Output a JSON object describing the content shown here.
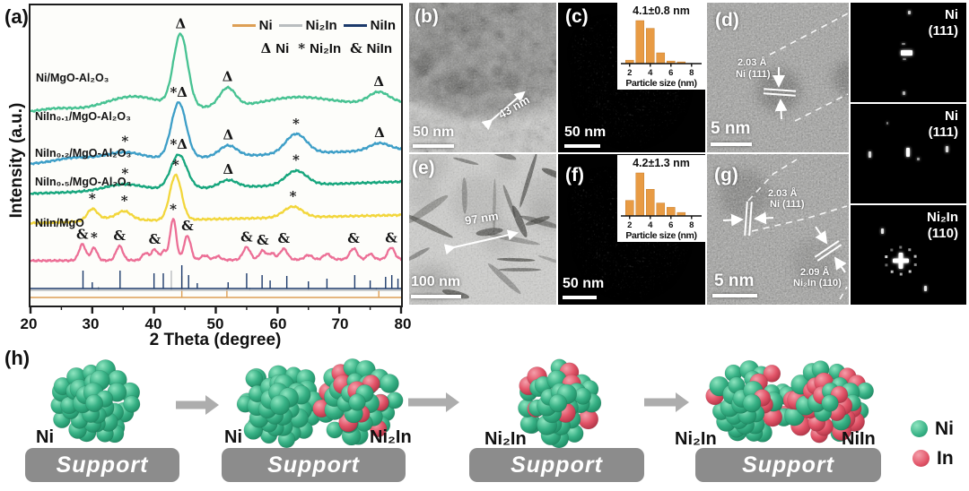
{
  "panels": {
    "a_label": "(a)",
    "h_label": "(h)"
  },
  "chart_data": [
    {
      "id": "xrd",
      "type": "line",
      "title": "",
      "xlabel": "2 Theta (degree)",
      "ylabel": "Intensity (a.u.)",
      "xlim": [
        20,
        80
      ],
      "x_ticks": [
        20,
        30,
        40,
        50,
        60,
        70,
        80
      ],
      "grid": false,
      "legend_position": "top-right",
      "series": [
        {
          "name": "Ni/MgO-Al₂O₃",
          "color": "#47c292",
          "base": 120,
          "slope": -0.2,
          "humps": [
            [
              36.5,
              15,
              4.5
            ],
            [
              63,
              9,
              5
            ],
            [
              24,
              4,
              3
            ]
          ],
          "peaks": [
            [
              44.3,
              80,
              1.15
            ],
            [
              51.9,
              21,
              1.3
            ],
            [
              76.4,
              12,
              1.6
            ]
          ],
          "markers": [
            [
              "Δ",
              44.3
            ],
            [
              "Δ",
              51.9
            ],
            [
              "Δ",
              76.4
            ]
          ]
        },
        {
          "name": "NiIn₀.₁/MgO-Al₂O₃",
          "color": "#3d9ec7",
          "base": 177,
          "slope": -0.27,
          "humps": [
            [
              35,
              9,
              3
            ],
            [
              27,
              5,
              3
            ]
          ],
          "peaks": [
            [
              44.0,
              62,
              1.2
            ],
            [
              52,
              12,
              1.4
            ],
            [
              63,
              22,
              1.7
            ],
            [
              76.5,
              8,
              1.6
            ]
          ],
          "markers": [
            [
              "*",
              35.3
            ],
            [
              "*Δ",
              44.0
            ],
            [
              "Δ",
              52.0
            ],
            [
              "*",
              63.0
            ],
            [
              "Δ",
              76.5
            ]
          ]
        },
        {
          "name": "NiIn₀.₂/MgO-Al₂O₃",
          "color": "#17a67d",
          "base": 210,
          "slope": -0.22,
          "humps": [
            [
              35,
              7,
              3
            ]
          ],
          "peaks": [
            [
              44.0,
              38,
              1.3
            ],
            [
              52,
              8,
              1.4
            ],
            [
              63,
              16,
              1.7
            ]
          ],
          "markers": [
            [
              "*",
              35.3
            ],
            [
              "*Δ",
              44.0
            ],
            [
              "Δ",
              52.0
            ],
            [
              "*",
              63.0
            ]
          ]
        },
        {
          "name": "NiIn₀.₅/MgO-Al₂O₃",
          "color": "#f2d63b",
          "base": 243,
          "slope": -0.15,
          "humps": [
            [
              33,
              4,
              3
            ]
          ],
          "peaks": [
            [
              30,
              12,
              0.8
            ],
            [
              35.2,
              8,
              1.1
            ],
            [
              43.5,
              50,
              0.95
            ],
            [
              62.5,
              12,
              1.5
            ]
          ],
          "markers": [
            [
              "*",
              30.0
            ],
            [
              "*",
              35.2
            ],
            [
              "*",
              43.5
            ],
            [
              "*",
              62.5
            ]
          ]
        },
        {
          "name": "NiIn/MgO",
          "color": "#ec6f96",
          "base": 285,
          "slope": -0.03,
          "humps": [],
          "peaks": [
            [
              28.4,
              18,
              0.55
            ],
            [
              30.3,
              14,
              0.5
            ],
            [
              34.4,
              16,
              0.55
            ],
            [
              38.6,
              8,
              0.5
            ],
            [
              40.1,
              12,
              0.5
            ],
            [
              41.6,
              10,
              0.45
            ],
            [
              43.1,
              46,
              0.5
            ],
            [
              45.4,
              27,
              0.55
            ],
            [
              48.2,
              5,
              0.6
            ],
            [
              50.3,
              4,
              0.5
            ],
            [
              55.0,
              14,
              0.6
            ],
            [
              57.6,
              10,
              0.55
            ],
            [
              59.1,
              7,
              0.5
            ],
            [
              61.0,
              12,
              0.6
            ],
            [
              65.0,
              5,
              0.6
            ],
            [
              68.0,
              6,
              0.6
            ],
            [
              72.3,
              12,
              0.6
            ],
            [
              75.0,
              6,
              0.5
            ],
            [
              78.4,
              13,
              0.55
            ]
          ],
          "markers": [
            [
              "&",
              28.4
            ],
            [
              "*",
              30.3
            ],
            [
              "&",
              34.4
            ],
            [
              "&",
              40.1
            ],
            [
              "*",
              43.1
            ],
            [
              "&",
              45.4
            ],
            [
              "&",
              55.0
            ],
            [
              "&",
              57.6
            ],
            [
              "&",
              61.0
            ],
            [
              "&",
              72.3
            ],
            [
              "&",
              78.4
            ]
          ]
        }
      ],
      "ref_series": [
        {
          "name": "Ni",
          "color": "#dd9f55",
          "base": 326,
          "sticks": [
            [
              44.5,
              24
            ],
            [
              51.8,
              11
            ],
            [
              76.4,
              8
            ]
          ]
        },
        {
          "name": "Ni₂In",
          "color": "#b9bdbf",
          "base": 318,
          "sticks": [
            [
              31,
              4
            ],
            [
              42.8,
              22
            ],
            [
              55.5,
              3
            ],
            [
              65,
              3
            ],
            [
              76,
              3
            ]
          ]
        },
        {
          "name": "NiIn",
          "color": "#1c3a6b",
          "base": 316,
          "sticks": [
            [
              28.5,
              20
            ],
            [
              30,
              7
            ],
            [
              34.5,
              20
            ],
            [
              40,
              17
            ],
            [
              41.5,
              17
            ],
            [
              44.5,
              26
            ],
            [
              45.6,
              15
            ],
            [
              47,
              6
            ],
            [
              52,
              7
            ],
            [
              55,
              17
            ],
            [
              57.5,
              15
            ],
            [
              58.8,
              9
            ],
            [
              61.5,
              14
            ],
            [
              65,
              8
            ],
            [
              68,
              11
            ],
            [
              72.5,
              15
            ],
            [
              75,
              9
            ],
            [
              77.5,
              13
            ],
            [
              78.5,
              15
            ],
            [
              79.5,
              11
            ]
          ]
        }
      ],
      "symbol_legend": [
        {
          "symbol": "Δ",
          "label": "Ni"
        },
        {
          "symbol": "*",
          "label": "Ni₂In"
        },
        {
          "symbol": "&",
          "label": "NiIn"
        }
      ]
    },
    {
      "id": "hist_c",
      "type": "bar",
      "title": "4.1±0.8 nm",
      "xlabel": "Particle size (nm)",
      "x_ticks": [
        2,
        4,
        6,
        8
      ],
      "centers": [
        2,
        3,
        4,
        5,
        6,
        7
      ],
      "values": [
        0.08,
        1.0,
        0.82,
        0.25,
        0.06,
        0.04
      ],
      "bar_color": "#e89b44"
    },
    {
      "id": "hist_f",
      "type": "bar",
      "title": "4.2±1.3 nm",
      "xlabel": "Particle size (nm)",
      "x_ticks": [
        2,
        4,
        6,
        8
      ],
      "centers": [
        2,
        3,
        4,
        5,
        6,
        7
      ],
      "values": [
        0.36,
        1.0,
        0.62,
        0.3,
        0.2,
        0.08
      ],
      "bar_color": "#e89b44"
    }
  ],
  "micrographs": {
    "b": {
      "label": "(b)",
      "scale_bar": "50 nm",
      "measure": "43 nm"
    },
    "c": {
      "label": "(c)",
      "scale_bar": "50 nm"
    },
    "d": {
      "label": "(d)",
      "scale_bar": "5 nm",
      "d_spacing": "2.03 Å",
      "plane": "Ni (111)"
    },
    "e": {
      "label": "(e)",
      "scale_bar": "100 nm",
      "measure": "97 nm"
    },
    "f": {
      "label": "(f)",
      "scale_bar": "50 nm"
    },
    "g": {
      "label": "(g)",
      "scale_bar": "5 nm",
      "d_spacing_1": "2.03 Å",
      "plane_1": "Ni (111)",
      "d_spacing_2": "2.09 Å",
      "plane_2": "Ni₂In (110)"
    }
  },
  "fft": [
    {
      "line1": "Ni",
      "line2": "(111)"
    },
    {
      "line1": "Ni",
      "line2": "(111)"
    },
    {
      "line1": "Ni₂In",
      "line2": "(110)"
    }
  ],
  "schematic": {
    "support_label": "Support",
    "mix": {
      "ni": 0,
      "ni2in": 0.28,
      "niin": 0.5
    },
    "stages": [
      {
        "clusters": [
          {
            "type": "ni",
            "label": "Ni"
          }
        ]
      },
      {
        "clusters": [
          {
            "type": "ni",
            "label": "Ni"
          },
          {
            "type": "ni2in",
            "label": "Ni₂In"
          }
        ]
      },
      {
        "clusters": [
          {
            "type": "ni2in",
            "label": "Ni₂In"
          }
        ]
      },
      {
        "clusters": [
          {
            "type": "ni2in",
            "label": "Ni₂In"
          },
          {
            "type": "niin",
            "label": "NiIn"
          }
        ]
      }
    ],
    "legend": [
      {
        "label": "Ni",
        "color": "#38b286"
      },
      {
        "label": "In",
        "color": "#e25468"
      }
    ],
    "colors": {
      "ni_sphere": "#38b286",
      "in_sphere": "#e25468",
      "support": "#8c8c8c",
      "arrow": "#adadad"
    }
  }
}
